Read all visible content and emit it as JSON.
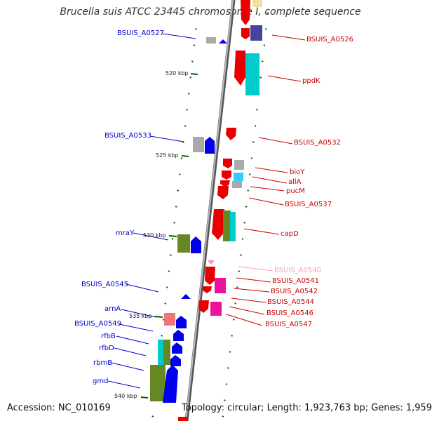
{
  "title": "Brucella suis ATCC 23445 chromosome I, complete sequence",
  "footer": {
    "accession": "Accession: NC_010169",
    "summary": "Topology: circular; Length: 1,923,763 bp; Genes: 1,959"
  },
  "colors": {
    "forward_label": "#0000cc",
    "reverse_label": "#cc0000",
    "faded_label": "#ff99cc",
    "backbone": "#888888",
    "tick": "#006600"
  },
  "scale": {
    "kbp_labels": [
      "520 kbp",
      "525 kbp",
      "530 kbp",
      "535 kbp",
      "540 kbp"
    ]
  },
  "genes_left": [
    {
      "label": "BSUIS_A0527"
    },
    {
      "label": "BSUIS_A0533"
    },
    {
      "label": "mraY"
    },
    {
      "label": "BSUIS_A0545"
    },
    {
      "label": "arnA"
    },
    {
      "label": "BSUIS_A0549"
    },
    {
      "label": "rfbB"
    },
    {
      "label": "rfbD"
    },
    {
      "label": "rbmB"
    },
    {
      "label": "gmd"
    }
  ],
  "genes_right": [
    {
      "label": "BSUIS_A0526"
    },
    {
      "label": "ppdK"
    },
    {
      "label": "BSUIS_A0532"
    },
    {
      "label": "bioY"
    },
    {
      "label": "allA"
    },
    {
      "label": "pucM"
    },
    {
      "label": "BSUIS_A0537"
    },
    {
      "label": "capD"
    },
    {
      "label": "BSUIS_A0540",
      "faded": true
    },
    {
      "label": "BSUIS_A0541"
    },
    {
      "label": "BSUIS_A0542"
    },
    {
      "label": "BSUIS_A0544"
    },
    {
      "label": "BSUIS_A0546"
    },
    {
      "label": "BSUIS_A0547"
    }
  ]
}
